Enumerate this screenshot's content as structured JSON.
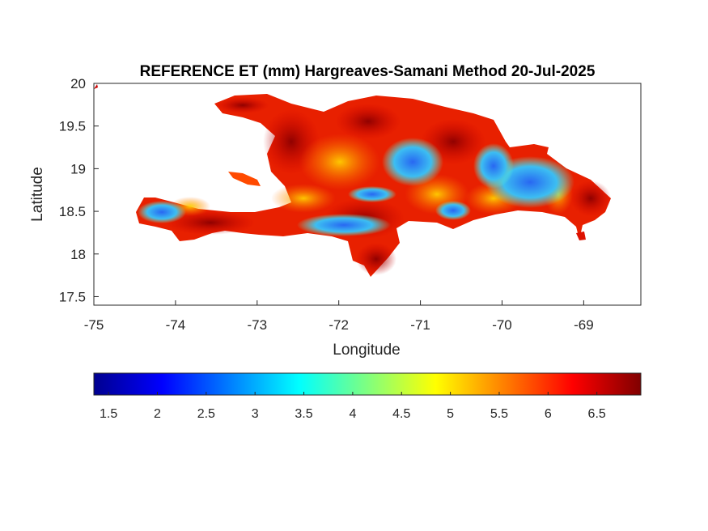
{
  "figure": {
    "title": "REFERENCE ET (mm) Hargreaves-Samani Method  20-Jul-2025",
    "xlabel": "Longitude",
    "ylabel": "Latitude"
  },
  "map_axes": {
    "x_range": [
      -75,
      -68.3
    ],
    "y_range": [
      17.4,
      20
    ],
    "x_ticks": [
      -75,
      -74,
      -73,
      -72,
      -71,
      -70,
      -69
    ],
    "x_tick_labels": [
      "-75",
      "-74",
      "-73",
      "-72",
      "-71",
      "-70",
      "-69"
    ],
    "y_ticks": [
      17.5,
      18,
      18.5,
      19,
      19.5,
      20
    ],
    "y_tick_labels": [
      "17.5",
      "18",
      "18.5",
      "19",
      "19.5",
      "20"
    ]
  },
  "colorbar": {
    "colormap": "jet",
    "range": [
      1.35,
      6.95
    ],
    "ticks": [
      1.5,
      2,
      2.5,
      3,
      3.5,
      4,
      4.5,
      5,
      5.5,
      6,
      6.5
    ],
    "tick_labels": [
      "1.5",
      "2",
      "2.5",
      "3",
      "3.5",
      "4",
      "4.5",
      "5",
      "5.5",
      "6",
      "6.5"
    ]
  },
  "colors": {
    "low": "#00008f",
    "mid_low": "#00ffff",
    "mid": "#ffff00",
    "high": "#ff0000",
    "very_high": "#800000"
  }
}
